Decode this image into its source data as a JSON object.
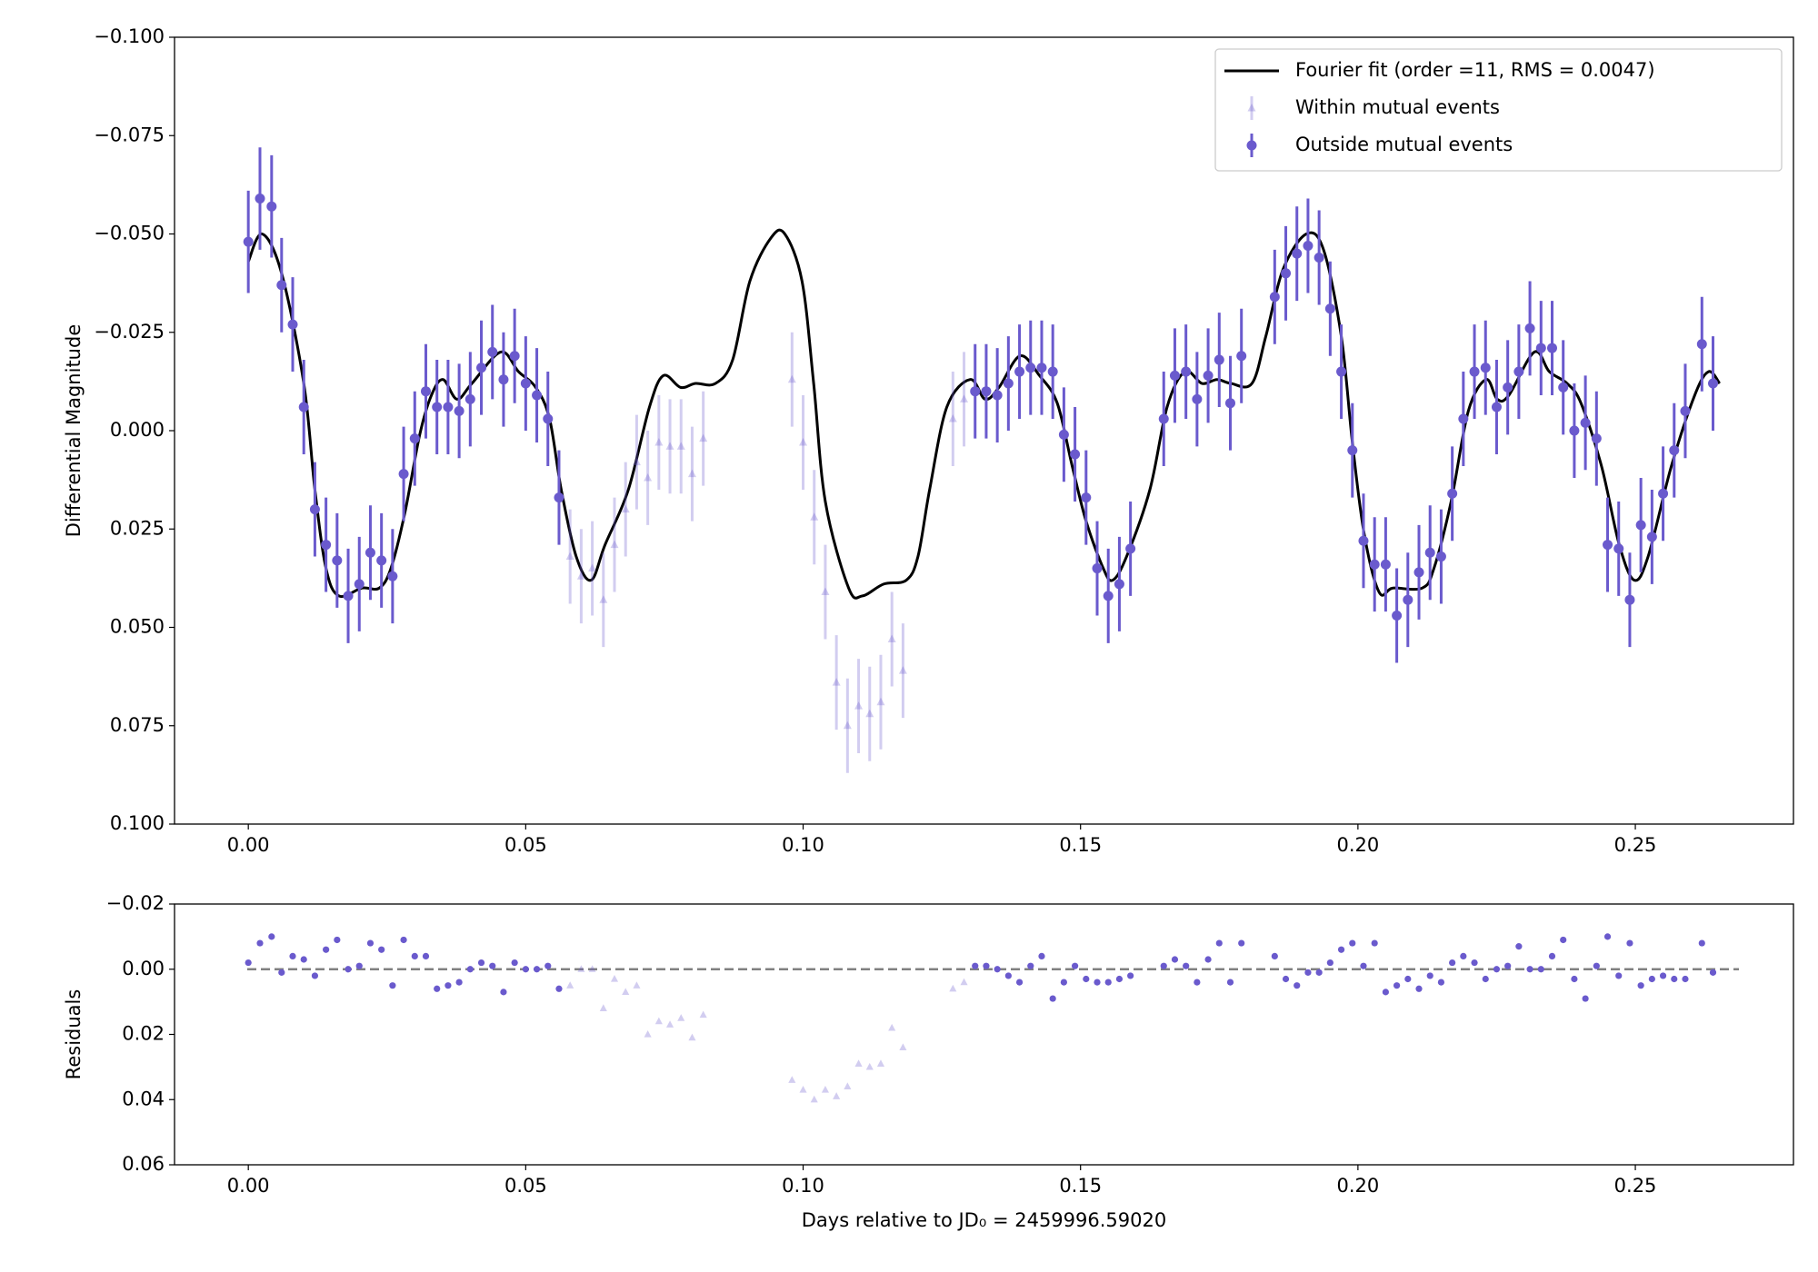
{
  "chart_data": [
    {
      "type": "errorbar",
      "ylabel": "Differential Magnitude",
      "xlim": [
        -0.0133,
        0.2785
      ],
      "ylim": [
        -0.1,
        0.1
      ],
      "y_inverted": true,
      "legend": "upper right",
      "xticks": [
        {
          "value": 0,
          "label": "0.00"
        },
        {
          "value": 0.05,
          "label": "0.05"
        },
        {
          "value": 0.1,
          "label": "0.10"
        },
        {
          "value": 0.15,
          "label": "0.15"
        },
        {
          "value": 0.2,
          "label": "0.20"
        },
        {
          "value": 0.25,
          "label": "0.25"
        }
      ],
      "yticks": [
        {
          "value": -0.1,
          "label": "−0.100"
        },
        {
          "value": -0.075,
          "label": "−0.075"
        },
        {
          "value": -0.05,
          "label": "−0.050"
        },
        {
          "value": -0.025,
          "label": "−0.025"
        },
        {
          "value": 0,
          "label": "0.000"
        },
        {
          "value": 0.025,
          "label": "0.025"
        },
        {
          "value": 0.05,
          "label": "0.050"
        },
        {
          "value": 0.075,
          "label": "0.075"
        },
        {
          "value": 0.1,
          "label": "0.100"
        }
      ],
      "series": [
        {
          "name": "Fourier fit (order =11, RMS = 0.0047)",
          "type": "line",
          "color": "#000000",
          "x": [
            0,
            0.0025,
            0.006,
            0.01,
            0.012,
            0.014,
            0.0163,
            0.0205,
            0.0236,
            0.0257,
            0.0282,
            0.0309,
            0.033,
            0.0351,
            0.0376,
            0.0403,
            0.0455,
            0.0487,
            0.0518,
            0.0543,
            0.0564,
            0.0591,
            0.0618,
            0.0643,
            0.0685,
            0.0723,
            0.0748,
            0.0779,
            0.0806,
            0.0842,
            0.0873,
            0.0904,
            0.0942,
            0.0967,
            0.0998,
            0.1019,
            0.104,
            0.1082,
            0.1107,
            0.1145,
            0.1186,
            0.1207,
            0.1228,
            0.1259,
            0.1301,
            0.1328,
            0.1353,
            0.1391,
            0.1426,
            0.1458,
            0.1485,
            0.151,
            0.1541,
            0.1558,
            0.1583,
            0.1625,
            0.1656,
            0.1688,
            0.1719,
            0.1746,
            0.1771,
            0.1809,
            0.1834,
            0.1865,
            0.1907,
            0.1938,
            0.197,
            0.199,
            0.2011,
            0.2038,
            0.2063,
            0.2116,
            0.2137,
            0.2168,
            0.2199,
            0.2231,
            0.2251,
            0.2272,
            0.2318,
            0.2345,
            0.2377,
            0.2402,
            0.2439,
            0.2471,
            0.2498,
            0.2523,
            0.2565,
            0.2607,
            0.2632,
            0.2652
          ],
          "values": [
            -0.043,
            -0.05,
            -0.04,
            -0.012,
            0.015,
            0.035,
            0.042,
            0.04,
            0.04,
            0.035,
            0.021,
            0.001,
            -0.009,
            -0.013,
            -0.008,
            -0.012,
            -0.02,
            -0.015,
            -0.011,
            -0.003,
            0.015,
            0.032,
            0.038,
            0.029,
            0.015,
            -0.006,
            -0.014,
            -0.011,
            -0.012,
            -0.012,
            -0.018,
            -0.038,
            -0.049,
            -0.05,
            -0.038,
            -0.012,
            0.018,
            0.04,
            0.042,
            0.039,
            0.038,
            0.032,
            0.015,
            -0.006,
            -0.013,
            -0.008,
            -0.011,
            -0.019,
            -0.014,
            -0.007,
            0.009,
            0.023,
            0.035,
            0.038,
            0.032,
            0.015,
            -0.006,
            -0.015,
            -0.012,
            -0.013,
            -0.012,
            -0.012,
            -0.024,
            -0.041,
            -0.05,
            -0.046,
            -0.024,
            0.003,
            0.026,
            0.041,
            0.04,
            0.04,
            0.035,
            0.018,
            -0.005,
            -0.013,
            -0.008,
            -0.009,
            -0.02,
            -0.015,
            -0.012,
            -0.007,
            0.009,
            0.029,
            0.038,
            0.032,
            0.009,
            -0.009,
            -0.015,
            -0.012
          ]
        },
        {
          "name": "Within mutual events",
          "type": "errorbar",
          "marker": "triangle",
          "color": "#6a5acd",
          "alpha": 0.3,
          "x": [
            0.058,
            0.06,
            0.062,
            0.064,
            0.066,
            0.068,
            0.07,
            0.072,
            0.074,
            0.076,
            0.078,
            0.08,
            0.082,
            0.098,
            0.1,
            0.102,
            0.104,
            0.106,
            0.108,
            0.11,
            0.112,
            0.114,
            0.116,
            0.118,
            0.127,
            0.129
          ],
          "values": [
            0.032,
            0.037,
            0.035,
            0.043,
            0.029,
            0.02,
            0.008,
            0.012,
            0.003,
            0.004,
            0.004,
            0.011,
            0.002,
            -0.013,
            0.003,
            0.022,
            0.041,
            0.064,
            0.075,
            0.07,
            0.072,
            0.069,
            0.053,
            0.061,
            -0.003,
            -0.008
          ],
          "errors": [
            0.012,
            0.012,
            0.012,
            0.012,
            0.012,
            0.012,
            0.012,
            0.012,
            0.012,
            0.012,
            0.012,
            0.012,
            0.012,
            0.012,
            0.012,
            0.012,
            0.012,
            0.012,
            0.012,
            0.012,
            0.012,
            0.012,
            0.012,
            0.012,
            0.012,
            0.012
          ]
        },
        {
          "name": "Outside mutual events",
          "type": "errorbar",
          "marker": "circle",
          "color": "#6a5acd",
          "alpha": 1,
          "x": [
            0,
            0.0021,
            0.0042,
            0.006,
            0.008,
            0.01,
            0.012,
            0.014,
            0.016,
            0.018,
            0.02,
            0.022,
            0.024,
            0.026,
            0.028,
            0.03,
            0.032,
            0.034,
            0.036,
            0.038,
            0.04,
            0.042,
            0.044,
            0.046,
            0.048,
            0.05,
            0.052,
            0.054,
            0.056,
            0.131,
            0.133,
            0.135,
            0.137,
            0.139,
            0.141,
            0.143,
            0.145,
            0.147,
            0.149,
            0.151,
            0.153,
            0.155,
            0.157,
            0.159,
            0.165,
            0.167,
            0.169,
            0.171,
            0.173,
            0.175,
            0.177,
            0.179,
            0.185,
            0.187,
            0.189,
            0.191,
            0.193,
            0.195,
            0.197,
            0.199,
            0.201,
            0.203,
            0.205,
            0.207,
            0.209,
            0.211,
            0.213,
            0.215,
            0.217,
            0.219,
            0.221,
            0.223,
            0.225,
            0.227,
            0.229,
            0.231,
            0.233,
            0.235,
            0.237,
            0.239,
            0.241,
            0.243,
            0.245,
            0.247,
            0.249,
            0.251,
            0.253,
            0.255,
            0.257,
            0.259,
            0.262,
            0.264
          ],
          "values": [
            -0.048,
            -0.059,
            -0.057,
            -0.037,
            -0.027,
            -0.006,
            0.02,
            0.029,
            0.033,
            0.042,
            0.039,
            0.031,
            0.033,
            0.037,
            0.011,
            0.002,
            -0.01,
            -0.006,
            -0.006,
            -0.005,
            -0.008,
            -0.016,
            -0.02,
            -0.013,
            -0.019,
            -0.012,
            -0.009,
            -0.003,
            0.017,
            -0.01,
            -0.01,
            -0.009,
            -0.012,
            -0.015,
            -0.016,
            -0.016,
            -0.015,
            0.001,
            0.006,
            0.017,
            0.035,
            0.042,
            0.039,
            0.03,
            -0.003,
            -0.014,
            -0.015,
            -0.008,
            -0.014,
            -0.018,
            -0.007,
            -0.019,
            -0.034,
            -0.04,
            -0.045,
            -0.047,
            -0.044,
            -0.031,
            -0.015,
            0.005,
            0.028,
            0.034,
            0.034,
            0.047,
            0.043,
            0.036,
            0.031,
            0.032,
            0.016,
            -0.003,
            -0.015,
            -0.016,
            -0.006,
            -0.011,
            -0.015,
            -0.026,
            -0.021,
            -0.021,
            -0.011,
            0,
            -0.002,
            0.002,
            0.029,
            0.03,
            0.043,
            0.024,
            0.027,
            0.016,
            0.005,
            -0.005,
            -0.022,
            -0.012
          ],
          "errors": [
            0.013,
            0.013,
            0.013,
            0.012,
            0.012,
            0.012,
            0.012,
            0.012,
            0.012,
            0.012,
            0.012,
            0.012,
            0.012,
            0.012,
            0.012,
            0.012,
            0.012,
            0.012,
            0.012,
            0.012,
            0.012,
            0.012,
            0.012,
            0.012,
            0.012,
            0.012,
            0.012,
            0.012,
            0.012,
            0.012,
            0.012,
            0.012,
            0.012,
            0.012,
            0.012,
            0.012,
            0.012,
            0.012,
            0.012,
            0.012,
            0.012,
            0.012,
            0.012,
            0.012,
            0.012,
            0.012,
            0.012,
            0.012,
            0.012,
            0.012,
            0.012,
            0.012,
            0.012,
            0.012,
            0.012,
            0.012,
            0.012,
            0.012,
            0.012,
            0.012,
            0.012,
            0.012,
            0.012,
            0.012,
            0.012,
            0.012,
            0.012,
            0.012,
            0.012,
            0.012,
            0.012,
            0.012,
            0.012,
            0.012,
            0.012,
            0.012,
            0.012,
            0.012,
            0.012,
            0.012,
            0.012,
            0.012,
            0.012,
            0.012,
            0.012,
            0.012,
            0.012,
            0.012,
            0.012,
            0.012,
            0.012,
            0.012
          ]
        }
      ]
    },
    {
      "type": "scatter",
      "ylabel": "Residuals",
      "xlabel": "Days relative to JD₀ = 2459996.59020",
      "xlim": [
        -0.0133,
        0.2785
      ],
      "ylim": [
        -0.02,
        0.06
      ],
      "y_inverted": true,
      "xticks": [
        {
          "value": 0,
          "label": "0.00"
        },
        {
          "value": 0.05,
          "label": "0.05"
        },
        {
          "value": 0.1,
          "label": "0.10"
        },
        {
          "value": 0.15,
          "label": "0.15"
        },
        {
          "value": 0.2,
          "label": "0.20"
        },
        {
          "value": 0.25,
          "label": "0.25"
        }
      ],
      "yticks": [
        {
          "value": -0.02,
          "label": "−0.02"
        },
        {
          "value": 0,
          "label": "0.00"
        },
        {
          "value": 0.02,
          "label": "0.02"
        },
        {
          "value": 0.04,
          "label": "0.04"
        },
        {
          "value": 0.06,
          "label": "0.06"
        }
      ],
      "reference_line": {
        "value": 0,
        "color": "#808080",
        "style": "dashed"
      },
      "series": [
        {
          "type": "scatter",
          "marker": "triangle",
          "color": "#6a5acd",
          "alpha": 0.3,
          "x": [
            0.058,
            0.06,
            0.062,
            0.064,
            0.066,
            0.068,
            0.07,
            0.072,
            0.074,
            0.076,
            0.078,
            0.08,
            0.082,
            0.098,
            0.1,
            0.102,
            0.104,
            0.106,
            0.108,
            0.11,
            0.112,
            0.114,
            0.116,
            0.118,
            0.127,
            0.129
          ],
          "values": [
            0.005,
            0,
            0,
            0.012,
            0.003,
            0.007,
            0.005,
            0.02,
            0.016,
            0.017,
            0.015,
            0.021,
            0.014,
            0.034,
            0.037,
            0.04,
            0.037,
            0.039,
            0.036,
            0.029,
            0.03,
            0.029,
            0.018,
            0.024,
            0.006,
            0.004
          ]
        },
        {
          "type": "scatter",
          "marker": "circle",
          "color": "#6a5acd",
          "alpha": 1,
          "x": [
            0,
            0.0021,
            0.0042,
            0.006,
            0.008,
            0.01,
            0.012,
            0.014,
            0.016,
            0.018,
            0.02,
            0.022,
            0.024,
            0.026,
            0.028,
            0.03,
            0.032,
            0.034,
            0.036,
            0.038,
            0.04,
            0.042,
            0.044,
            0.046,
            0.048,
            0.05,
            0.052,
            0.054,
            0.056,
            0.131,
            0.133,
            0.135,
            0.137,
            0.139,
            0.141,
            0.143,
            0.145,
            0.147,
            0.149,
            0.151,
            0.153,
            0.155,
            0.157,
            0.159,
            0.165,
            0.167,
            0.169,
            0.171,
            0.173,
            0.175,
            0.177,
            0.179,
            0.185,
            0.187,
            0.189,
            0.191,
            0.193,
            0.195,
            0.197,
            0.199,
            0.201,
            0.203,
            0.205,
            0.207,
            0.209,
            0.211,
            0.213,
            0.215,
            0.217,
            0.219,
            0.221,
            0.223,
            0.225,
            0.227,
            0.229,
            0.231,
            0.233,
            0.235,
            0.237,
            0.239,
            0.241,
            0.243,
            0.245,
            0.247,
            0.249,
            0.251,
            0.253,
            0.255,
            0.257,
            0.259,
            0.262,
            0.264
          ],
          "values": [
            -0.002,
            -0.008,
            -0.01,
            0.001,
            -0.004,
            -0.003,
            0.002,
            -0.006,
            -0.009,
            0,
            -0.001,
            -0.008,
            -0.006,
            0.005,
            -0.009,
            -0.004,
            -0.004,
            0.006,
            0.005,
            0.004,
            0,
            -0.002,
            -0.001,
            0.007,
            -0.002,
            0,
            0,
            -0.001,
            0.006,
            -0.001,
            -0.001,
            0,
            0.002,
            0.004,
            -0.001,
            -0.004,
            0.009,
            0.004,
            -0.001,
            0.003,
            0.004,
            0.004,
            0.003,
            0.002,
            -0.001,
            -0.003,
            -0.001,
            0.004,
            -0.003,
            -0.008,
            0.004,
            -0.008,
            -0.004,
            0.003,
            0.005,
            0.001,
            0.001,
            -0.002,
            -0.006,
            -0.008,
            -0.001,
            -0.008,
            0.007,
            0.005,
            0.003,
            0.006,
            0.002,
            0.004,
            -0.002,
            -0.004,
            -0.002,
            0.003,
            0,
            -0.001,
            -0.007,
            0,
            0,
            -0.004,
            -0.009,
            0.003,
            0.009,
            -0.001,
            -0.01,
            0.002,
            -0.008,
            0.005,
            0.003,
            0.002,
            0.003,
            0.003,
            -0.008,
            0.001
          ]
        }
      ]
    }
  ]
}
